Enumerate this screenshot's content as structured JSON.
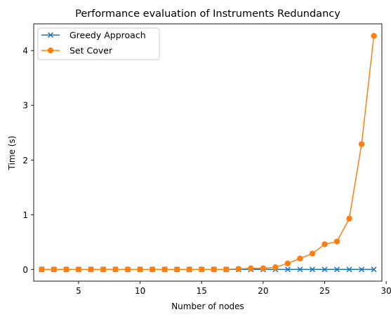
{
  "chart_data": {
    "type": "line",
    "title": "Performance evaluation of Instruments Redundancy",
    "xlabel": "Number of nodes",
    "ylabel": "Time (s)",
    "xlim": [
      1.35,
      29.65
    ],
    "ylim": [
      -0.214,
      4.49
    ],
    "xticks": [
      5,
      10,
      15,
      20,
      25,
      30
    ],
    "yticks": [
      0,
      1,
      2,
      3,
      4
    ],
    "grid": false,
    "legend_position": "upper-left",
    "x": [
      2,
      3,
      4,
      5,
      6,
      7,
      8,
      9,
      10,
      11,
      12,
      13,
      14,
      15,
      16,
      17,
      18,
      19,
      20,
      21,
      22,
      23,
      24,
      25,
      26,
      27,
      28,
      29
    ],
    "series": [
      {
        "name": "Greedy Approach",
        "color": "#1f77b4",
        "marker": "x",
        "values": [
          0,
          0,
          0,
          0,
          0,
          0,
          0,
          0,
          0,
          0,
          0,
          0,
          0,
          0,
          0,
          0,
          0,
          0,
          0,
          0,
          0,
          0,
          0,
          0,
          0,
          0,
          0,
          0
        ]
      },
      {
        "name": "Set Cover",
        "color": "#ff7f0e",
        "marker": "o",
        "values": [
          0,
          0,
          0,
          0,
          0,
          0,
          0,
          0,
          0,
          0,
          0,
          0,
          0,
          0,
          0,
          0,
          0.01,
          0.02,
          0.02,
          0.04,
          0.11,
          0.2,
          0.29,
          0.46,
          0.51,
          0.93,
          2.29,
          4.27
        ]
      }
    ]
  }
}
